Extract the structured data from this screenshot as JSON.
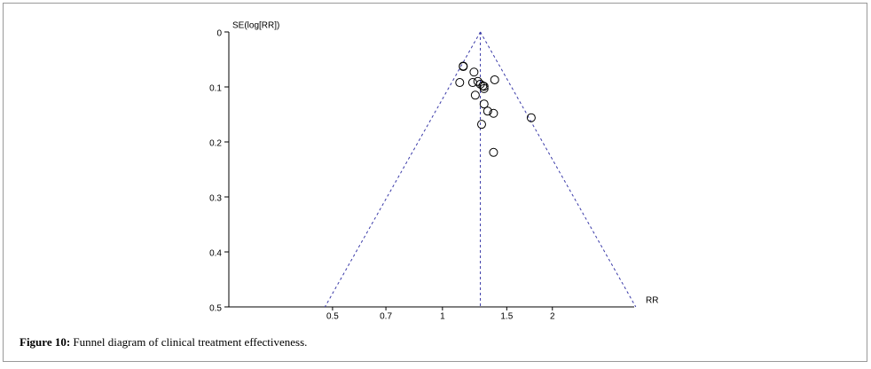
{
  "chart_data": {
    "type": "scatter",
    "ylabel": "SE(log[RR])",
    "xlabel": "RR",
    "xscale": "log",
    "xlim": [
      0.26,
      3.35
    ],
    "xticks": [
      0.5,
      0.7,
      1,
      1.5,
      2
    ],
    "ylim": [
      0,
      0.5
    ],
    "y_reversed": true,
    "yticks": [
      0,
      0.1,
      0.2,
      0.3,
      0.4,
      0.5
    ],
    "color": "#000000",
    "funnel": {
      "center": 1.27,
      "z": 1.96,
      "color": "#3a3aa8"
    },
    "x": [
      1.14,
      1.14,
      1.115,
      1.22,
      1.21,
      1.25,
      1.27,
      1.29,
      1.3,
      1.3,
      1.23,
      1.39,
      1.3,
      1.33,
      1.38,
      1.75,
      1.28,
      1.38
    ],
    "values": [
      0.063,
      0.062,
      0.092,
      0.073,
      0.092,
      0.09,
      0.095,
      0.098,
      0.103,
      0.099,
      0.115,
      0.087,
      0.131,
      0.144,
      0.148,
      0.156,
      0.168,
      0.219
    ]
  },
  "caption": {
    "label": "Figure 10:",
    "text": "Funnel diagram of clinical treatment effectiveness."
  }
}
